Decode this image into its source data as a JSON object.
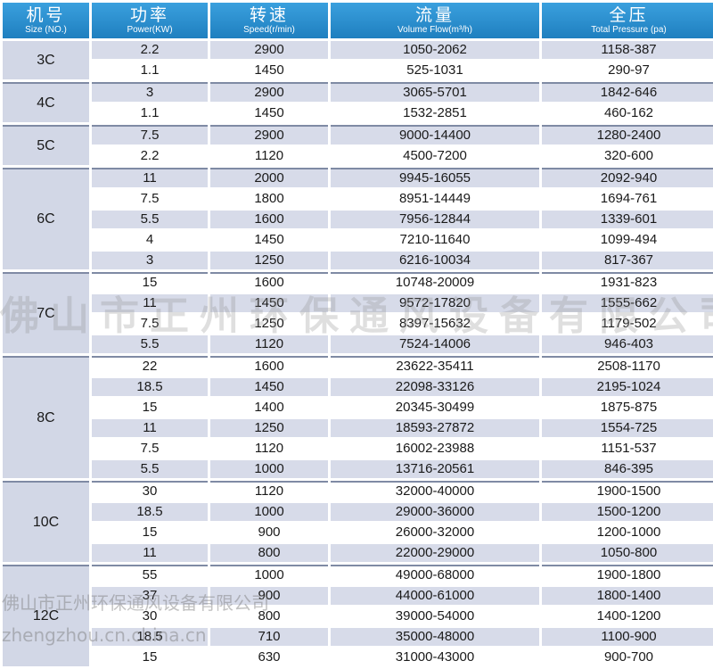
{
  "headers": [
    {
      "zh": "机号",
      "en": "Size (NO.)"
    },
    {
      "zh": "功率",
      "en": "Power(KW)"
    },
    {
      "zh": "转速",
      "en": "Speed(r/min)"
    },
    {
      "zh": "流量",
      "en": "Volume Flow(m³/h)"
    },
    {
      "zh": "全压",
      "en": "Total Pressure (pa)"
    }
  ],
  "groups": [
    {
      "model": "3C",
      "rows": [
        {
          "power": "2.2",
          "speed": "2900",
          "flow": "1050-2062",
          "pressure": "1158-387"
        },
        {
          "power": "1.1",
          "speed": "1450",
          "flow": "525-1031",
          "pressure": "290-97"
        }
      ]
    },
    {
      "model": "4C",
      "rows": [
        {
          "power": "3",
          "speed": "2900",
          "flow": "3065-5701",
          "pressure": "1842-646"
        },
        {
          "power": "1.1",
          "speed": "1450",
          "flow": "1532-2851",
          "pressure": "460-162"
        }
      ]
    },
    {
      "model": "5C",
      "rows": [
        {
          "power": "7.5",
          "speed": "2900",
          "flow": "9000-14400",
          "pressure": "1280-2400"
        },
        {
          "power": "2.2",
          "speed": "1120",
          "flow": "4500-7200",
          "pressure": "320-600"
        }
      ]
    },
    {
      "model": "6C",
      "rows": [
        {
          "power": "11",
          "speed": "2000",
          "flow": "9945-16055",
          "pressure": "2092-940"
        },
        {
          "power": "7.5",
          "speed": "1800",
          "flow": "8951-14449",
          "pressure": "1694-761"
        },
        {
          "power": "5.5",
          "speed": "1600",
          "flow": "7956-12844",
          "pressure": "1339-601"
        },
        {
          "power": "4",
          "speed": "1450",
          "flow": "7210-11640",
          "pressure": "1099-494"
        },
        {
          "power": "3",
          "speed": "1250",
          "flow": "6216-10034",
          "pressure": "817-367"
        }
      ]
    },
    {
      "model": "7C",
      "rows": [
        {
          "power": "15",
          "speed": "1600",
          "flow": "10748-20009",
          "pressure": "1931-823"
        },
        {
          "power": "11",
          "speed": "1450",
          "flow": "9572-17820",
          "pressure": "1555-662"
        },
        {
          "power": "7.5",
          "speed": "1250",
          "flow": "8397-15632",
          "pressure": "1179-502"
        },
        {
          "power": "5.5",
          "speed": "1120",
          "flow": "7524-14006",
          "pressure": "946-403"
        }
      ]
    },
    {
      "model": "8C",
      "rows": [
        {
          "power": "22",
          "speed": "1600",
          "flow": "23622-35411",
          "pressure": "2508-1170"
        },
        {
          "power": "18.5",
          "speed": "1450",
          "flow": "22098-33126",
          "pressure": "2195-1024"
        },
        {
          "power": "15",
          "speed": "1400",
          "flow": "20345-30499",
          "pressure": "1875-875"
        },
        {
          "power": "11",
          "speed": "1250",
          "flow": "18593-27872",
          "pressure": "1554-725"
        },
        {
          "power": "7.5",
          "speed": "1120",
          "flow": "16002-23988",
          "pressure": "1151-537"
        },
        {
          "power": "5.5",
          "speed": "1000",
          "flow": "13716-20561",
          "pressure": "846-395"
        }
      ]
    },
    {
      "model": "10C",
      "rows": [
        {
          "power": "30",
          "speed": "1120",
          "flow": "32000-40000",
          "pressure": "1900-1500"
        },
        {
          "power": "18.5",
          "speed": "1000",
          "flow": "29000-36000",
          "pressure": "1500-1200"
        },
        {
          "power": "15",
          "speed": "900",
          "flow": "26000-32000",
          "pressure": "1200-1000"
        },
        {
          "power": "11",
          "speed": "800",
          "flow": "22000-29000",
          "pressure": "1050-800"
        }
      ]
    },
    {
      "model": "12C",
      "rows": [
        {
          "power": "55",
          "speed": "1000",
          "flow": "49000-68000",
          "pressure": "1900-1800"
        },
        {
          "power": "37",
          "speed": "900",
          "flow": "44000-61000",
          "pressure": "1800-1400"
        },
        {
          "power": "30",
          "speed": "800",
          "flow": "39000-54000",
          "pressure": "1400-1200"
        },
        {
          "power": "18.5",
          "speed": "710",
          "flow": "35000-48000",
          "pressure": "1100-900"
        },
        {
          "power": "15",
          "speed": "630",
          "flow": "31000-43000",
          "pressure": "900-700"
        }
      ]
    }
  ],
  "watermarks": {
    "center": "佛山市正州环保通风设备有限公司",
    "bottom_company": "佛山市正州环保通风设备有限公司",
    "bottom_url": "zhengzhou.cn.china.cn"
  }
}
